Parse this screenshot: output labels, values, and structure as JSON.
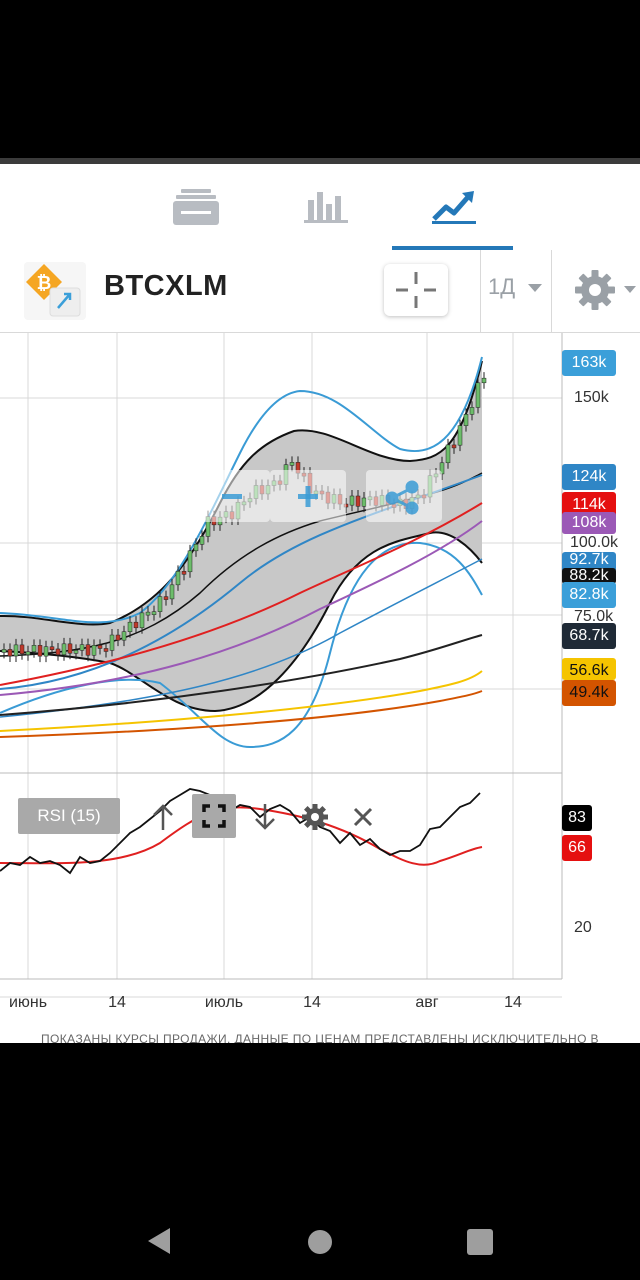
{
  "tabs": [
    {
      "name": "news-icon",
      "active": false
    },
    {
      "name": "bar-chart-icon",
      "active": false
    },
    {
      "name": "trend-chart-icon",
      "active": true
    }
  ],
  "header": {
    "symbol": "BTCXLM",
    "interval": "1Д",
    "icons": [
      "bitcoin-logo",
      "crosshair-icon",
      "chevron-down-icon",
      "gear-icon"
    ]
  },
  "colors": {
    "accent": "#2478b8",
    "candle_up": "#6cbd6a",
    "candle_down": "#c0392b",
    "bollinger_fill": "#c8c8c8",
    "bollinger_inner": "#111111",
    "keltner": "#3a9bd5",
    "ma_red": "#e02020",
    "ma_purple": "#9b59b6",
    "ma_blue": "#2f86c6",
    "ma_black": "#222222",
    "ma_yellow": "#f5c400",
    "ma_orange": "#d35400",
    "rsi_line": "#111111",
    "rsi_signal": "#e02020"
  },
  "price_labels": [
    {
      "text": "163k",
      "bg": "#3b9fd9",
      "fg": "#ffffff"
    },
    {
      "text": "124k",
      "bg": "#2f86c6",
      "fg": "#ffffff"
    },
    {
      "text": "114k",
      "bg": "#e51010",
      "fg": "#ffffff"
    },
    {
      "text": "108k",
      "bg": "#9b59b6",
      "fg": "#ffffff"
    },
    {
      "text": "92.7k",
      "bg": "#2f86c6",
      "fg": "#ffffff"
    },
    {
      "text": "88.2k",
      "bg": "#111111",
      "fg": "#ffffff"
    },
    {
      "text": "82.8k",
      "bg": "#3b9fd9",
      "fg": "#ffffff"
    },
    {
      "text": "68.7k",
      "bg": "#1f2a36",
      "fg": "#ffffff"
    },
    {
      "text": "56.6k",
      "bg": "#f5c400",
      "fg": "#111111"
    },
    {
      "text": "49.4k",
      "bg": "#d35400",
      "fg": "#111111"
    }
  ],
  "price_axis": [
    "150k",
    "100.0k",
    "75.0k"
  ],
  "rsi": {
    "label": "RSI (15)",
    "value": "83",
    "signal": "66",
    "axis_tick": "20",
    "controls": [
      "up-arrow-icon",
      "expand-icon",
      "down-arrow-icon",
      "gear-icon",
      "close-icon"
    ]
  },
  "date_axis": [
    "июнь",
    "14",
    "июль",
    "14",
    "авг",
    "14"
  ],
  "zoom": {
    "controls": [
      "zoom-out-icon",
      "zoom-in-icon",
      "share-icon"
    ]
  },
  "disclaimer": "ПОКАЗАНЫ КУРСЫ ПРОДАЖИ. ДАННЫЕ ПО ЦЕНАМ ПРЕДСТАВЛЕНЫ ИСКЛЮЧИТЕЛЬНО В",
  "navbar": [
    "back-icon",
    "home-icon",
    "recents-icon"
  ]
}
